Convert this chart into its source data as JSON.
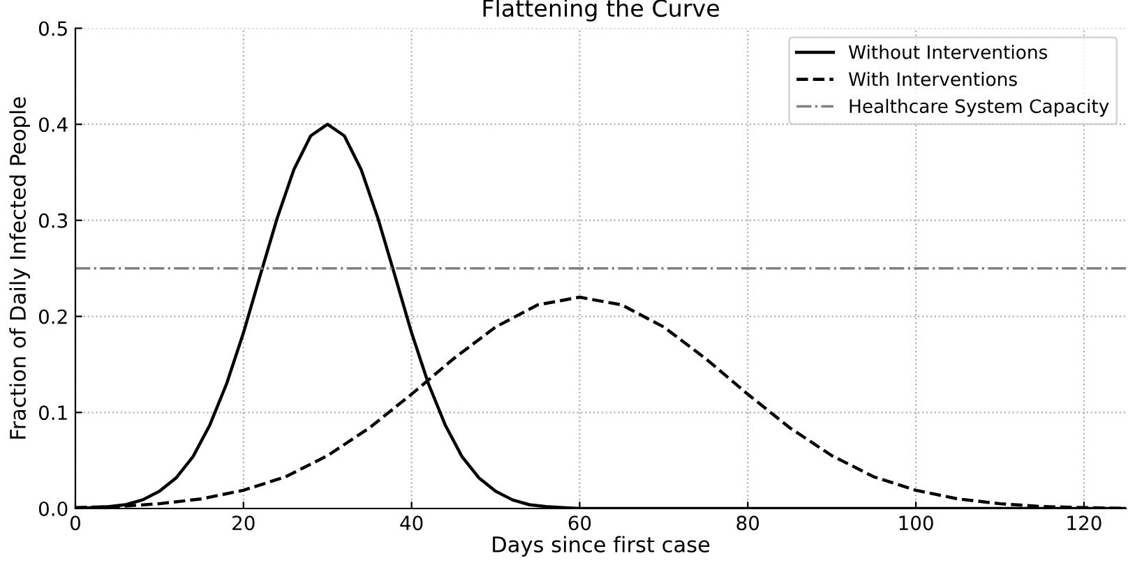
{
  "chart_data": {
    "type": "line",
    "title": "Flattening the Curve",
    "xlabel": "Days since first case",
    "ylabel": "Fraction of Daily Infected People",
    "series": [
      {
        "name": "Without Interventions",
        "color": "#000000",
        "line_style": "solid",
        "x": [
          0,
          2,
          4,
          6,
          8,
          10,
          12,
          14,
          16,
          18,
          20,
          22,
          24,
          26,
          28,
          30,
          32,
          34,
          36,
          38,
          40,
          42,
          44,
          46,
          48,
          50,
          52,
          54,
          56,
          58,
          60,
          70,
          80,
          90,
          100,
          110,
          125
        ],
        "values": [
          0.0,
          0.001,
          0.002,
          0.004,
          0.009,
          0.018,
          0.032,
          0.054,
          0.087,
          0.13,
          0.183,
          0.243,
          0.302,
          0.353,
          0.388,
          0.4,
          0.388,
          0.353,
          0.302,
          0.243,
          0.183,
          0.13,
          0.087,
          0.054,
          0.032,
          0.018,
          0.009,
          0.004,
          0.002,
          0.001,
          0.0,
          0.0,
          0.0,
          0.0,
          0.0,
          0.0,
          0.0
        ]
      },
      {
        "name": "With Interventions",
        "color": "#000000",
        "line_style": "dashed",
        "x": [
          0,
          5,
          10,
          15,
          20,
          25,
          30,
          35,
          40,
          45,
          50,
          55,
          60,
          65,
          70,
          75,
          80,
          85,
          90,
          95,
          100,
          105,
          110,
          115,
          120,
          125
        ],
        "values": [
          0.001,
          0.002,
          0.005,
          0.01,
          0.019,
          0.033,
          0.055,
          0.084,
          0.119,
          0.156,
          0.189,
          0.212,
          0.22,
          0.212,
          0.189,
          0.156,
          0.119,
          0.084,
          0.055,
          0.033,
          0.019,
          0.01,
          0.005,
          0.002,
          0.001,
          0.0
        ]
      }
    ],
    "ref_lines": [
      {
        "axis": "y",
        "value": 0.25,
        "label": "Healthcare System Capacity",
        "color": "#808080",
        "line_style": "dashdot"
      }
    ],
    "xlim": [
      0,
      125
    ],
    "ylim": [
      0,
      0.5
    ],
    "xticks": [
      0,
      20,
      40,
      60,
      80,
      100,
      120
    ],
    "yticks": [
      {
        "value": 0,
        "label": "0.0"
      },
      {
        "value": 0.1,
        "label": "0.1"
      },
      {
        "value": 0.2,
        "label": "0.2"
      },
      {
        "value": 0.3,
        "label": "0.3"
      },
      {
        "value": 0.4,
        "label": "0.4"
      },
      {
        "value": 0.5,
        "label": "0.5"
      }
    ],
    "grid": true,
    "legend": "top right"
  }
}
